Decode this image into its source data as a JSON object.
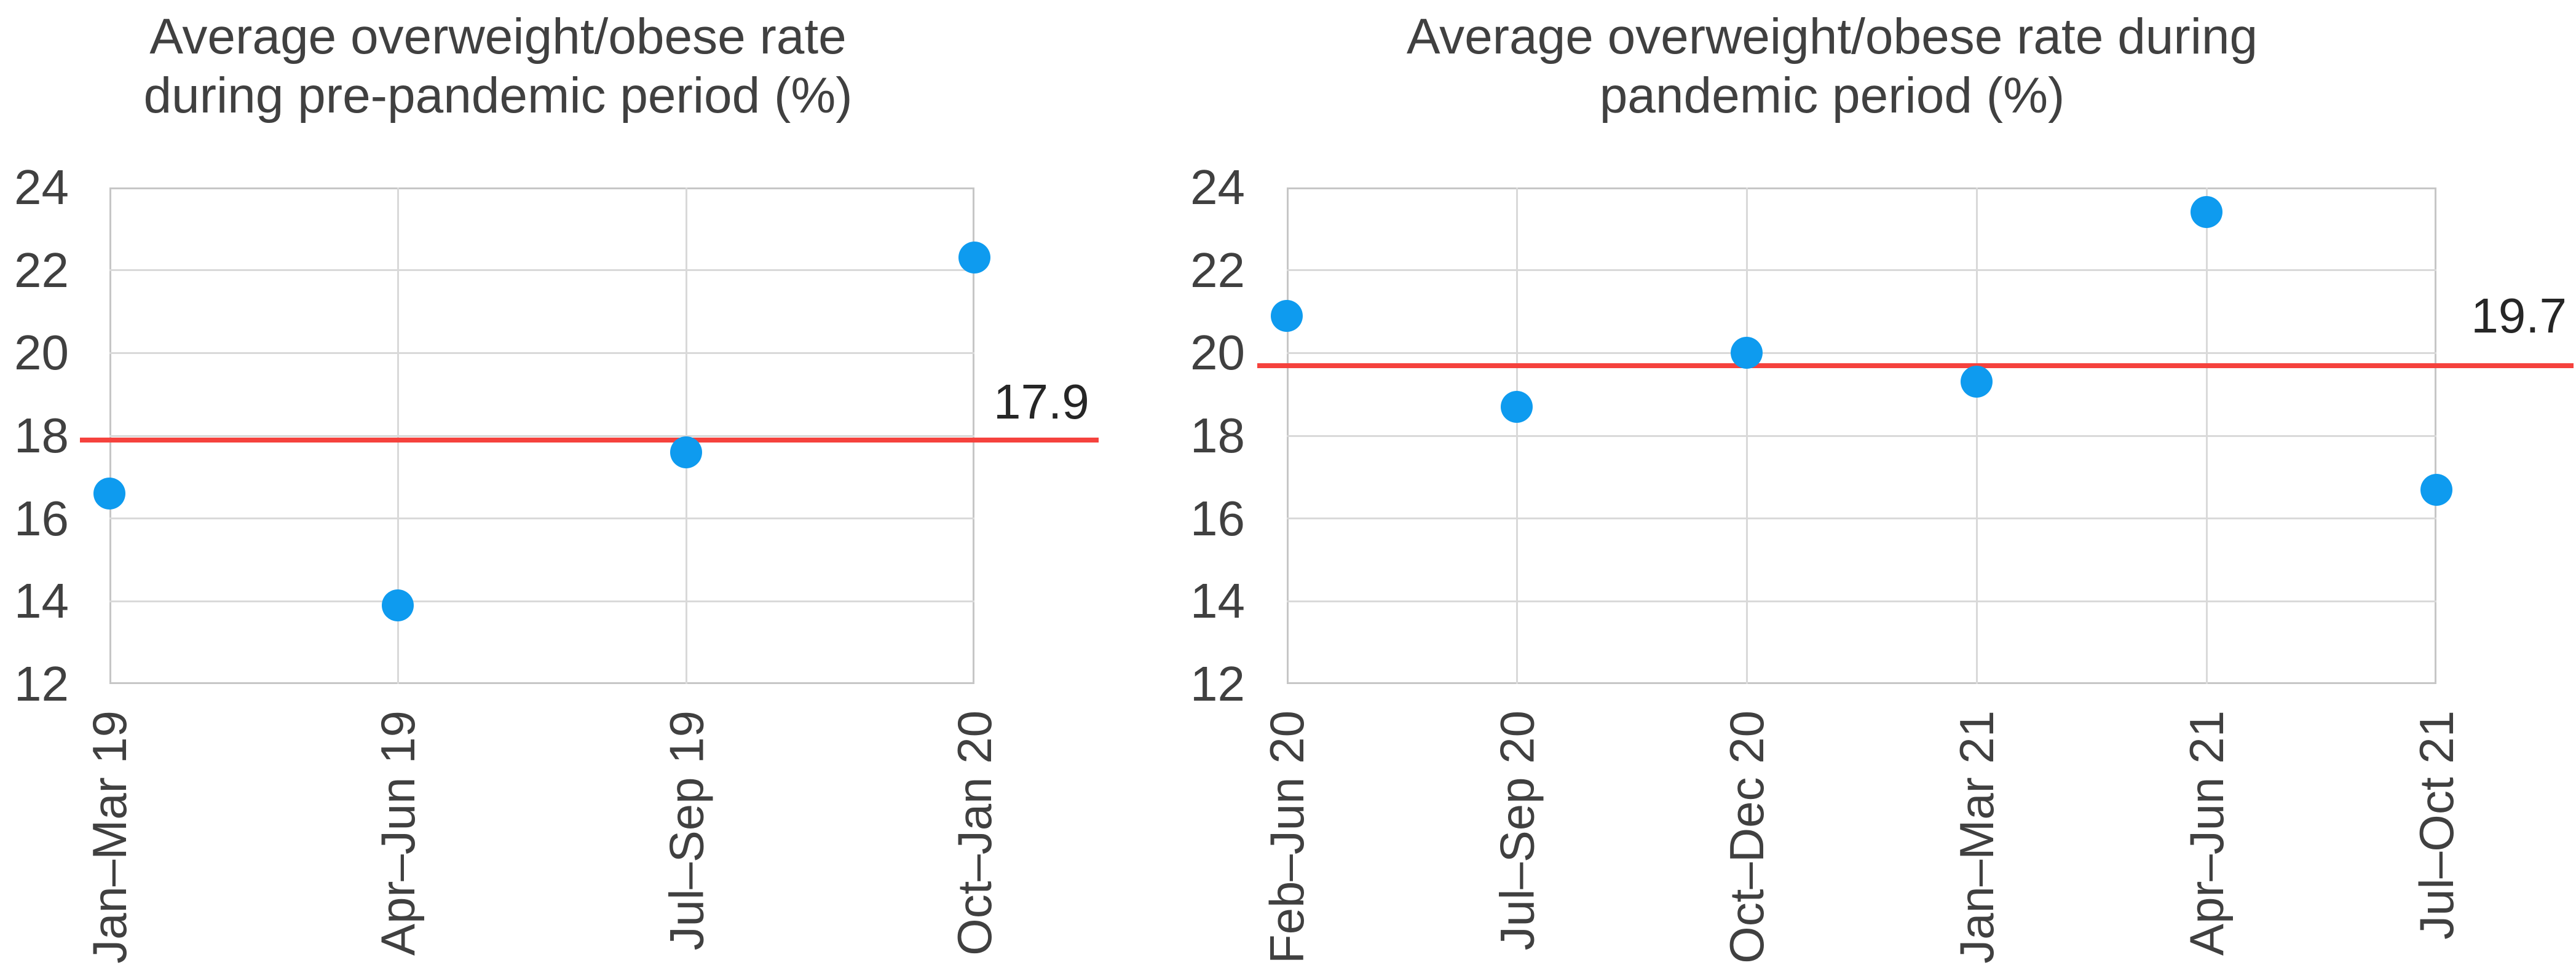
{
  "figure": {
    "description": "Two scatter charts comparing average overweight/obese rates before and during the pandemic",
    "background_color": "#ffffff"
  },
  "colors": {
    "marker": "#0e9bef",
    "mean_line": "#f5423d",
    "grid": "#d9d9d9",
    "axis_border": "#c6c6c6",
    "text": "#404040",
    "mean_label_text": "#262626"
  },
  "chart_data": [
    {
      "type": "scatter",
      "title": "Average overweight/obese rate during pre-pandemic period (%)",
      "title_lines": [
        "Average overweight/obese rate",
        "during pre-pandemic period (%)"
      ],
      "categories": [
        "Jan–Mar 19",
        "Apr–Jun 19",
        "Jul–Sep 19",
        "Oct–Jan 20"
      ],
      "values": [
        16.6,
        13.9,
        17.6,
        22.3
      ],
      "mean_line": {
        "value": 17.9,
        "label": "17.9"
      },
      "ylim": [
        12,
        24
      ],
      "yticks": [
        12,
        14,
        16,
        18,
        20,
        22,
        24
      ],
      "xlabel": "",
      "ylabel": "",
      "grid": true,
      "legend": "none",
      "marker_color": "#0e9bef",
      "mean_line_color": "#f5423d"
    },
    {
      "type": "scatter",
      "title": "Average overweight/obese rate during pandemic period (%)",
      "title_lines": [
        "Average overweight/obese rate during",
        "pandemic period (%)"
      ],
      "categories": [
        "Feb–Jun 20",
        "Jul–Sep 20",
        "Oct–Dec 20",
        "Jan–Mar 21",
        "Apr–Jun 21",
        "Jul–Oct 21"
      ],
      "values": [
        20.9,
        18.7,
        20.0,
        19.3,
        23.4,
        16.7
      ],
      "mean_line": {
        "value": 19.7,
        "label": "19.7"
      },
      "ylim": [
        12,
        24
      ],
      "yticks": [
        12,
        14,
        16,
        18,
        20,
        22,
        24
      ],
      "xlabel": "",
      "ylabel": "",
      "grid": true,
      "legend": "none",
      "marker_color": "#0e9bef",
      "mean_line_color": "#f5423d"
    }
  ]
}
